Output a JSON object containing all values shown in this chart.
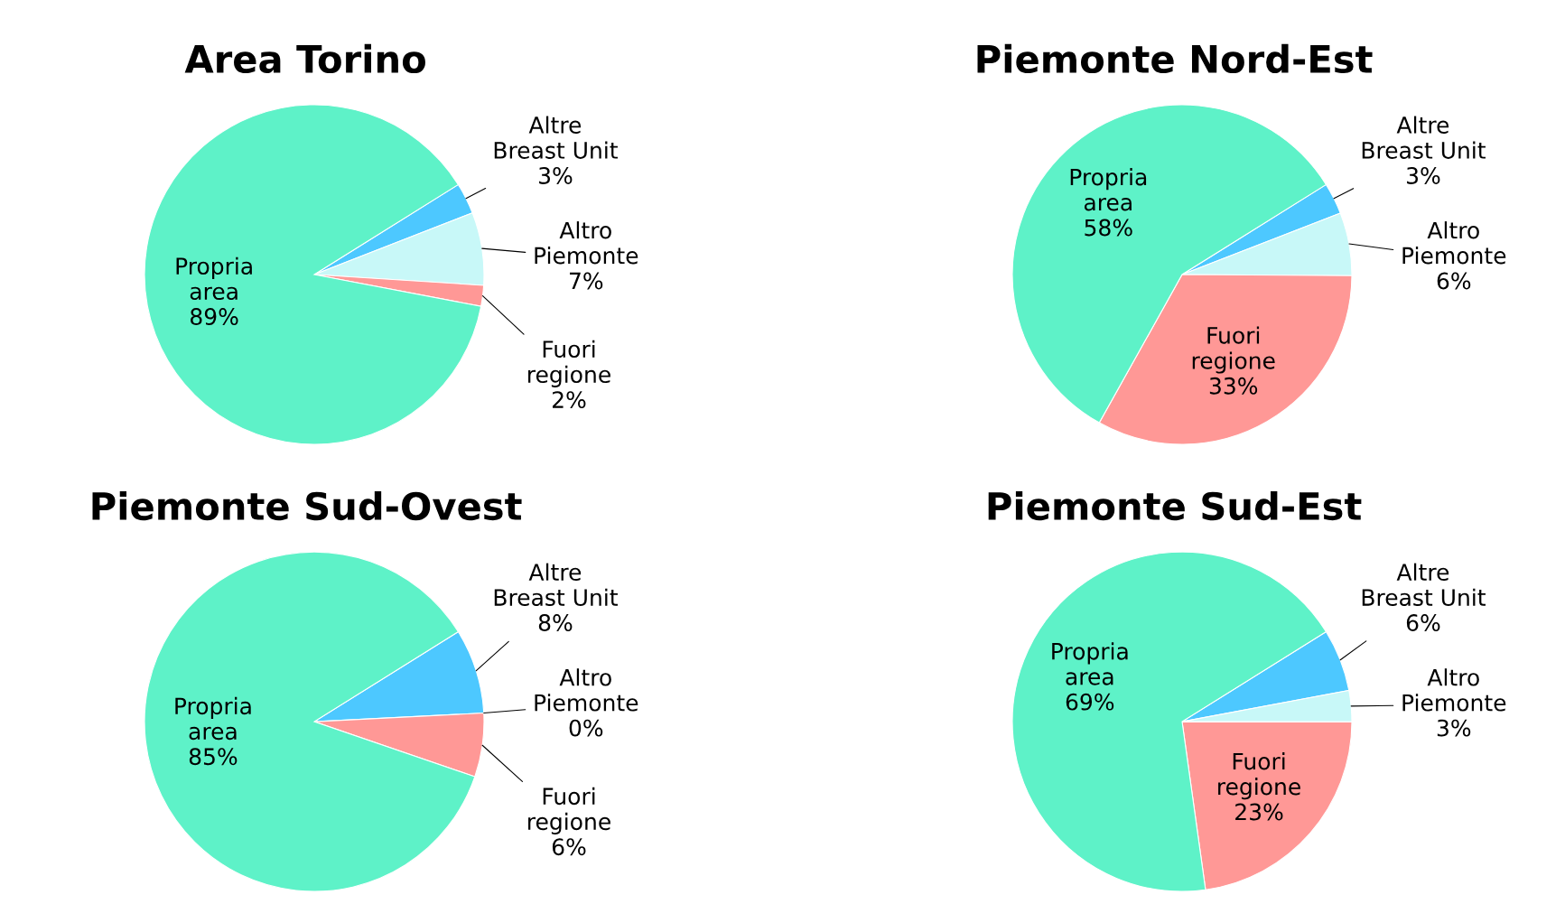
{
  "chart_data": [
    {
      "type": "pie",
      "title": "Area Torino",
      "categories": [
        "Altre Breast Unit",
        "Altro Piemonte",
        "Fuori regione",
        "Propria area"
      ],
      "values": [
        3,
        7,
        2,
        89
      ],
      "value_labels": [
        "3%",
        "7%",
        "2%",
        "89%"
      ],
      "colors": [
        "#4dc8ff",
        "#c8f8f8",
        "#ff9896",
        "#5ef2c8"
      ]
    },
    {
      "type": "pie",
      "title": "Piemonte Nord-Est",
      "categories": [
        "Altre Breast Unit",
        "Altro Piemonte",
        "Fuori regione",
        "Propria area"
      ],
      "values": [
        3,
        6,
        33,
        58
      ],
      "value_labels": [
        "3%",
        "6%",
        "33%",
        "58%"
      ],
      "colors": [
        "#4dc8ff",
        "#c8f8f8",
        "#ff9896",
        "#5ef2c8"
      ]
    },
    {
      "type": "pie",
      "title": "Piemonte Sud-Ovest",
      "categories": [
        "Altre Breast Unit",
        "Altro Piemonte",
        "Fuori regione",
        "Propria area"
      ],
      "values": [
        8,
        0,
        6,
        85
      ],
      "value_labels": [
        "8%",
        "0%",
        "6%",
        "85%"
      ],
      "colors": [
        "#4dc8ff",
        "#c8f8f8",
        "#ff9896",
        "#5ef2c8"
      ]
    },
    {
      "type": "pie",
      "title": "Piemonte Sud-Est",
      "categories": [
        "Altre Breast Unit",
        "Altro Piemonte",
        "Fuori regione",
        "Propria area"
      ],
      "values": [
        6,
        3,
        23,
        69
      ],
      "value_labels": [
        "6%",
        "3%",
        "23%",
        "69%"
      ],
      "colors": [
        "#4dc8ff",
        "#c8f8f8",
        "#ff9896",
        "#5ef2c8"
      ]
    }
  ]
}
